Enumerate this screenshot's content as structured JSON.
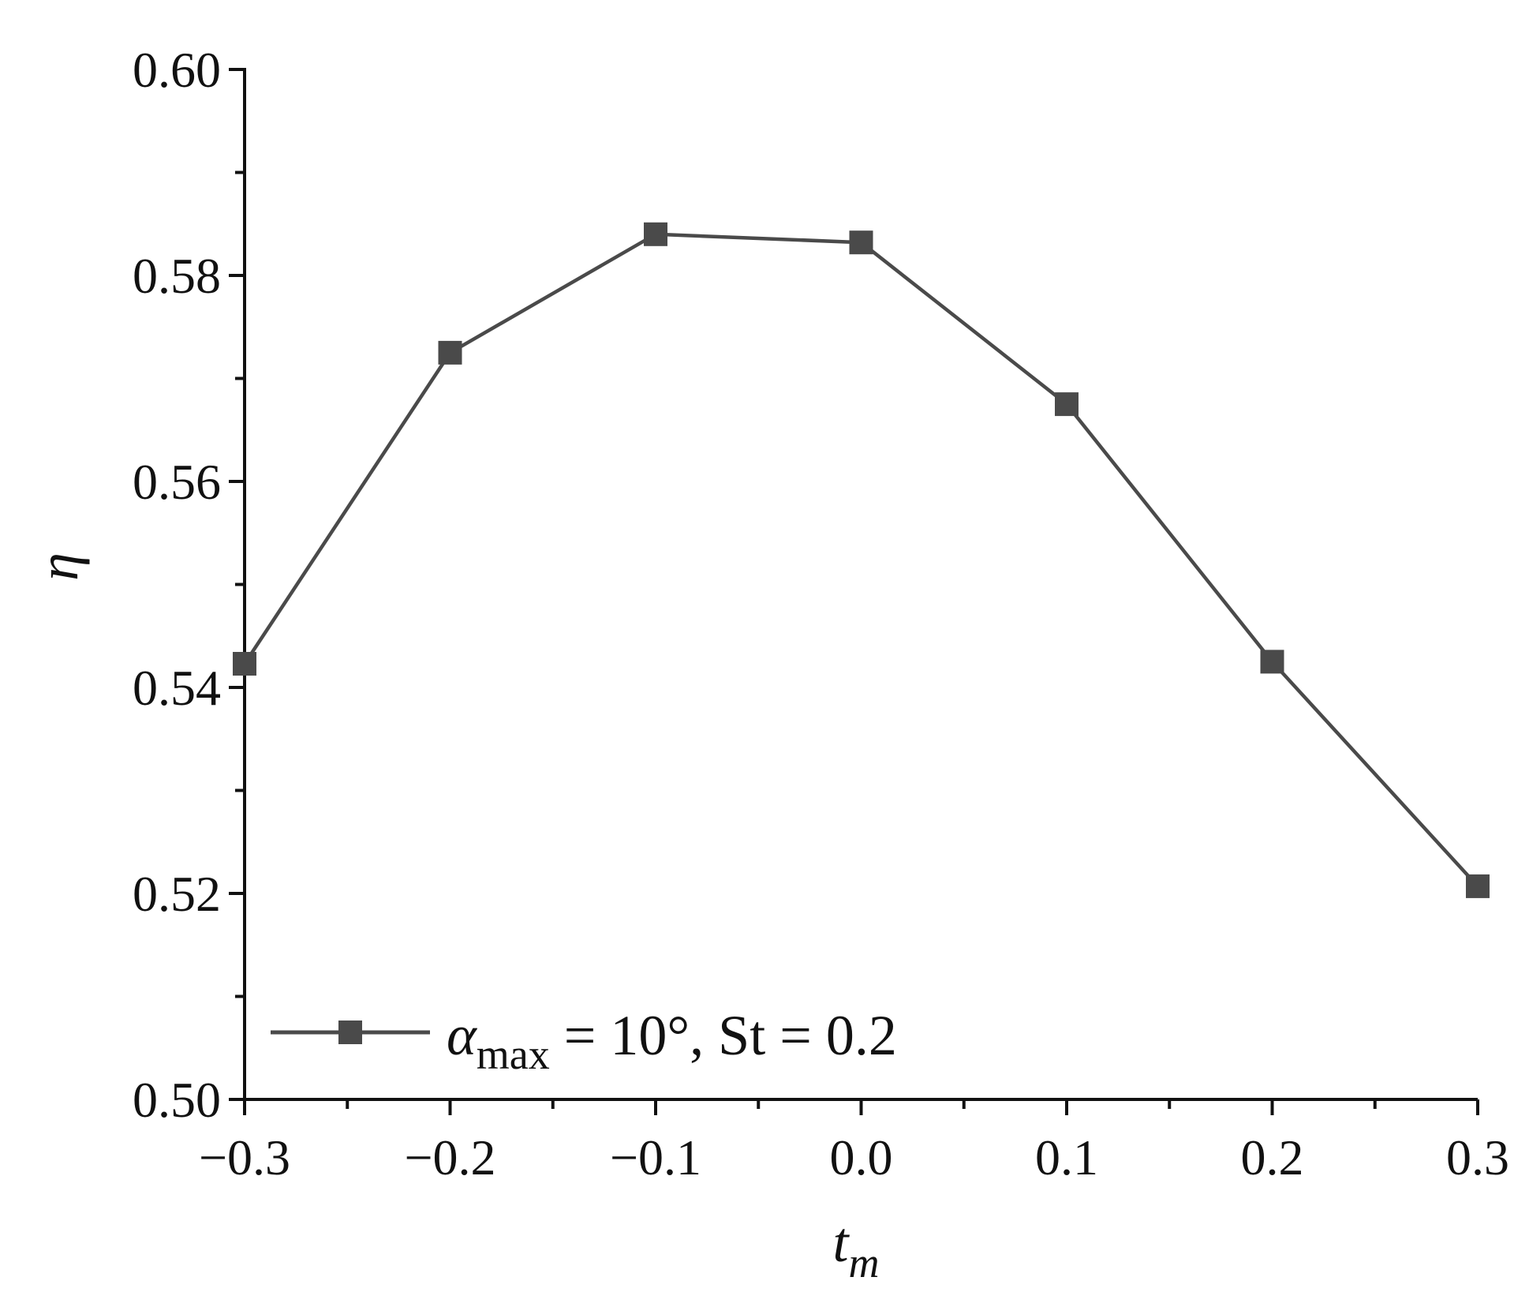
{
  "chart_data": {
    "type": "line",
    "x": [
      -0.3,
      -0.2,
      -0.1,
      0.0,
      0.1,
      0.2,
      0.3
    ],
    "series": [
      {
        "name": "α_max = 10°, St = 0.2",
        "values": [
          0.5423,
          0.5725,
          0.584,
          0.5832,
          0.5675,
          0.5425,
          0.5207
        ],
        "color": "#4a4a4a",
        "marker": "square"
      }
    ],
    "title": "",
    "xlabel": "t",
    "xlabel_sub": "m",
    "ylabel": "η",
    "xlim": [
      -0.3,
      0.3
    ],
    "ylim": [
      0.5,
      0.6
    ],
    "x_ticks": [
      -0.3,
      -0.2,
      -0.1,
      0.0,
      0.1,
      0.2,
      0.3
    ],
    "x_tick_labels": [
      "−0.3",
      "−0.2",
      "−0.1",
      "0.0",
      "0.1",
      "0.2",
      "0.3"
    ],
    "y_ticks": [
      0.5,
      0.52,
      0.54,
      0.56,
      0.58,
      0.6
    ],
    "y_tick_labels": [
      "0.50",
      "0.52",
      "0.54",
      "0.56",
      "0.58",
      "0.60"
    ],
    "grid": false,
    "legend": {
      "placement": "bottom-left",
      "symbol": "α",
      "sub": "max",
      "rest": " = 10°, St = 0.2"
    }
  }
}
